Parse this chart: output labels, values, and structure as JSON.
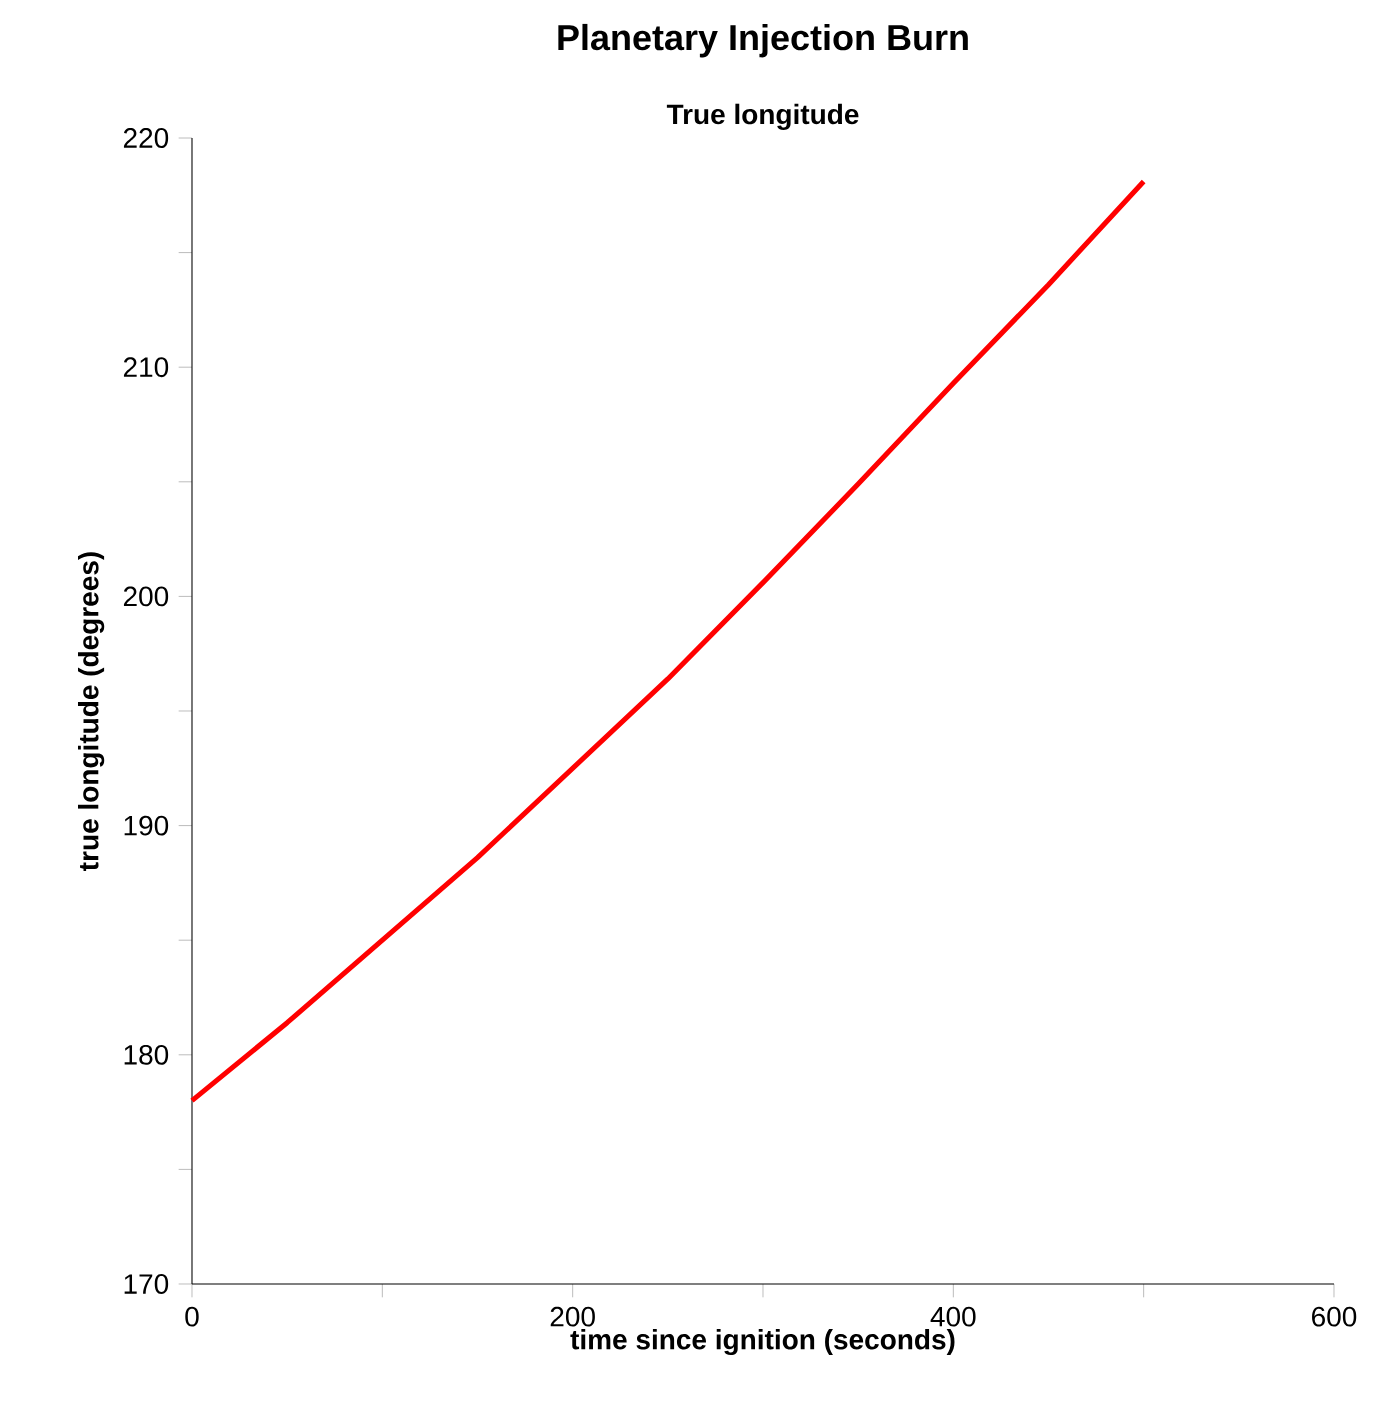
{
  "chart_data": {
    "type": "line",
    "title": "Planetary Injection Burn",
    "subtitle": "True longitude",
    "xlabel": "time since ignition (seconds)",
    "ylabel": "true longitude (degrees)",
    "x": [
      0,
      50,
      100,
      150,
      200,
      250,
      300,
      350,
      400,
      450,
      500
    ],
    "series": [
      {
        "color": "#ff0000",
        "values": [
          178,
          181.4,
          185.0,
          188.6,
          192.5,
          196.4,
          200.6,
          204.9,
          209.3,
          213.6,
          218.1
        ]
      }
    ],
    "xlim": [
      0,
      600
    ],
    "ylim": [
      170,
      220
    ],
    "xticks": [
      0,
      {
        "value": 100,
        "label": null
      },
      200,
      {
        "value": 300,
        "label": null
      },
      400,
      {
        "value": 500,
        "label": null
      },
      600
    ],
    "yticks": [
      170,
      {
        "value": 175,
        "label": null
      },
      180,
      {
        "value": 185,
        "label": null
      },
      190,
      {
        "value": 195,
        "label": null
      },
      200,
      {
        "value": 205,
        "label": null
      },
      210,
      {
        "value": 215,
        "label": null
      },
      220
    ]
  }
}
